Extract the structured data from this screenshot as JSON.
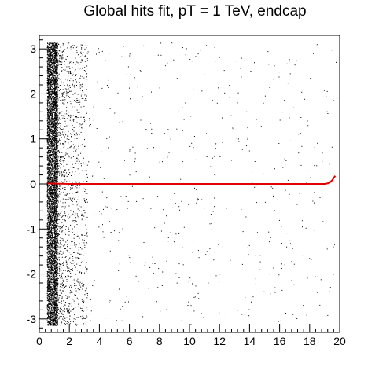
{
  "chart_data": {
    "type": "scatter",
    "title": "Global hits fit, pT = 1 TeV, endcap",
    "xlabel": "",
    "ylabel": "",
    "xlim": [
      0,
      20
    ],
    "ylim": [
      -3.3,
      3.3
    ],
    "x_ticks": [
      "0",
      "2",
      "4",
      "6",
      "8",
      "10",
      "12",
      "14",
      "16",
      "18",
      "20"
    ],
    "y_ticks": [
      "-3",
      "-2",
      "-1",
      "0",
      "1",
      "2",
      "3"
    ],
    "grid": false,
    "legend": "none",
    "series": [
      {
        "kind": "points",
        "color": "#000000",
        "x_range": [
          0.5,
          19.8
        ],
        "y_range": [
          -3.14,
          3.14
        ],
        "dense_band_x": [
          0.5,
          1.2
        ],
        "description": "approx. uniform in y; density highest near x 0.6-1.0, falling off by x 2.5, sparse to x 19.8"
      },
      {
        "kind": "line",
        "color": "#e00000",
        "x": [
          0.5,
          2.0,
          5.0,
          10.0,
          15.0,
          19.0,
          19.3,
          19.5,
          19.7
        ],
        "y": [
          0.01,
          0.0,
          0.0,
          0.0,
          0.0,
          0.0,
          0.02,
          0.08,
          0.18
        ]
      }
    ]
  }
}
